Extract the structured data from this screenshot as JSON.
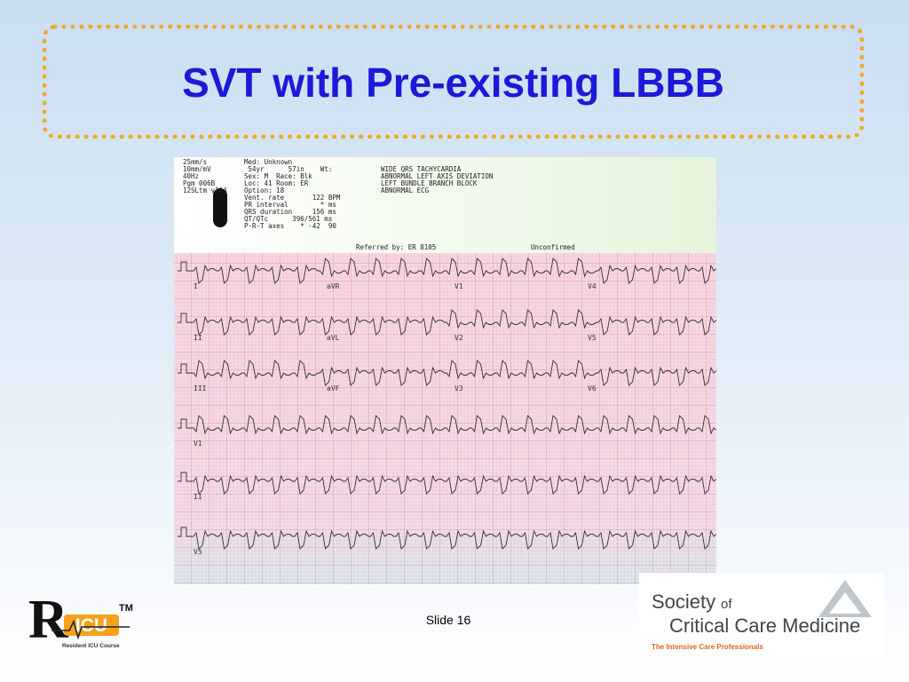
{
  "header": {
    "title": "SVT with Pre-existing LBBB"
  },
  "ecg": {
    "settings": [
      "25mm/s",
      "10mm/mV",
      "40Hz",
      "Pgm 006B",
      "12SLtm v104"
    ],
    "patient": [
      "Med: Unknown",
      " 54yr      57in    Wt:",
      "Sex: M  Race: Blk",
      "Loc: 41 Room: ER",
      "Option: 18",
      "Vent. rate       122 BPM",
      "PR interval        * ms",
      "QRS duration     156 ms",
      "QT/QTc      396/561 ms",
      "P-R-T axes    * -42  90"
    ],
    "interpretation": [
      "WIDE QRS TACHYCARDIA",
      "ABNORMAL LEFT AXIS DEVIATION",
      "LEFT BUNDLE BRANCH BLOCK",
      "ABNORMAL ECG"
    ],
    "referred": "Referred by: ER 8105",
    "status": "Unconfirmed",
    "leads": [
      [
        "I",
        "aVR",
        "V1",
        "V4"
      ],
      [
        "II",
        "aVL",
        "V2",
        "V5"
      ],
      [
        "III",
        "aVF",
        "V3",
        "V6"
      ],
      [
        "V1"
      ],
      [
        "II"
      ],
      [
        "V5"
      ]
    ]
  },
  "footer": {
    "slide": "Slide 16"
  },
  "logos": {
    "ricu": {
      "letter": "R",
      "name": "ICU",
      "tm": "TM",
      "caption": "Resident ICU Course"
    },
    "sccm": {
      "line1": "Society",
      "of": "of",
      "line2": "Critical Care Medicine",
      "tagline": "The Intensive Care Professionals"
    }
  }
}
